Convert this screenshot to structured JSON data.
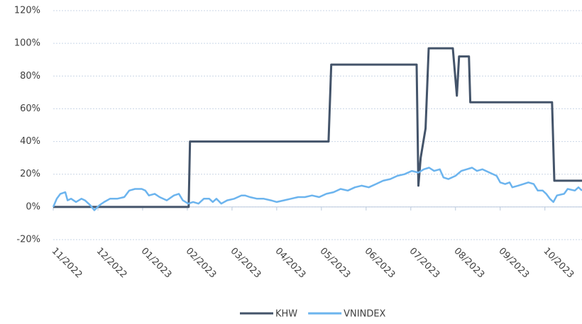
{
  "chart_data": {
    "type": "line",
    "xlim": [
      0,
      11.83
    ],
    "xticks": [
      {
        "value": 0,
        "label": "11/2022"
      },
      {
        "value": 1,
        "label": "12/2022"
      },
      {
        "value": 2,
        "label": "01/2023"
      },
      {
        "value": 3,
        "label": "02/2023"
      },
      {
        "value": 4,
        "label": "03/2023"
      },
      {
        "value": 5,
        "label": "04/2023"
      },
      {
        "value": 6,
        "label": "05/2023"
      },
      {
        "value": 7,
        "label": "06/2023"
      },
      {
        "value": 8,
        "label": "07/2023"
      },
      {
        "value": 9,
        "label": "08/2023"
      },
      {
        "value": 10,
        "label": "09/2023"
      },
      {
        "value": 11,
        "label": "10/2023"
      }
    ],
    "ylim": [
      -20,
      120
    ],
    "yticks": [
      {
        "value": -20,
        "label": "-20%"
      },
      {
        "value": 0,
        "label": "0%"
      },
      {
        "value": 20,
        "label": "20%"
      },
      {
        "value": 40,
        "label": "40%"
      },
      {
        "value": 60,
        "label": "60%"
      },
      {
        "value": 80,
        "label": "80%"
      },
      {
        "value": 100,
        "label": "100%"
      },
      {
        "value": 120,
        "label": "120%"
      }
    ],
    "grid": true,
    "legend": "bottom",
    "series": [
      {
        "name": "KHW",
        "color": "#44546a",
        "x": [
          0,
          3.03,
          3.06,
          6.16,
          6.22,
          8.13,
          8.17,
          8.22,
          8.33,
          8.4,
          8.94,
          9.03,
          9.08,
          9.3,
          9.33,
          11.16,
          11.21,
          11.83
        ],
        "values": [
          0,
          0,
          40,
          40,
          87,
          87,
          13,
          30,
          48,
          97,
          97,
          68,
          92,
          92,
          64,
          64,
          16,
          16
        ]
      },
      {
        "name": "VNINDEX",
        "color": "#6cb4ee",
        "x": [
          0,
          0.08,
          0.16,
          0.27,
          0.32,
          0.4,
          0.51,
          0.63,
          0.71,
          0.83,
          0.92,
          1.03,
          1.14,
          1.27,
          1.43,
          1.59,
          1.7,
          1.83,
          1.98,
          2.06,
          2.14,
          2.27,
          2.38,
          2.54,
          2.7,
          2.81,
          2.9,
          3.02,
          3.13,
          3.25,
          3.37,
          3.49,
          3.57,
          3.65,
          3.76,
          3.89,
          4.05,
          4.21,
          4.29,
          4.4,
          4.56,
          4.71,
          4.87,
          5.0,
          5.16,
          5.32,
          5.48,
          5.63,
          5.79,
          5.95,
          6.11,
          6.27,
          6.43,
          6.59,
          6.75,
          6.9,
          7.06,
          7.22,
          7.38,
          7.54,
          7.7,
          7.86,
          8.02,
          8.17,
          8.29,
          8.41,
          8.52,
          8.65,
          8.73,
          8.84,
          9.0,
          9.13,
          9.25,
          9.37,
          9.48,
          9.6,
          9.76,
          9.92,
          10.0,
          10.11,
          10.21,
          10.27,
          10.4,
          10.52,
          10.63,
          10.75,
          10.84,
          10.95,
          11.03,
          11.11,
          11.19,
          11.27,
          11.43,
          11.51,
          11.67,
          11.75,
          11.83
        ],
        "values": [
          0,
          5,
          8,
          9,
          4,
          5,
          3,
          5,
          4,
          1,
          -2,
          1,
          3,
          5,
          5,
          6,
          10,
          11,
          11,
          10,
          7,
          8,
          6,
          4,
          7,
          8,
          4,
          2,
          3,
          2,
          5,
          5,
          3,
          5,
          2,
          4,
          5,
          7,
          7,
          6,
          5,
          5,
          4,
          3,
          4,
          5,
          6,
          6,
          7,
          6,
          8,
          9,
          11,
          10,
          12,
          13,
          12,
          14,
          16,
          17,
          19,
          20,
          22,
          21,
          23,
          24,
          22,
          23,
          18,
          17,
          19,
          22,
          23,
          24,
          22,
          23,
          21,
          19,
          15,
          14,
          15,
          12,
          13,
          14,
          15,
          14,
          10,
          10,
          8,
          5,
          3,
          7,
          8,
          11,
          10,
          12,
          10
        ]
      }
    ]
  }
}
